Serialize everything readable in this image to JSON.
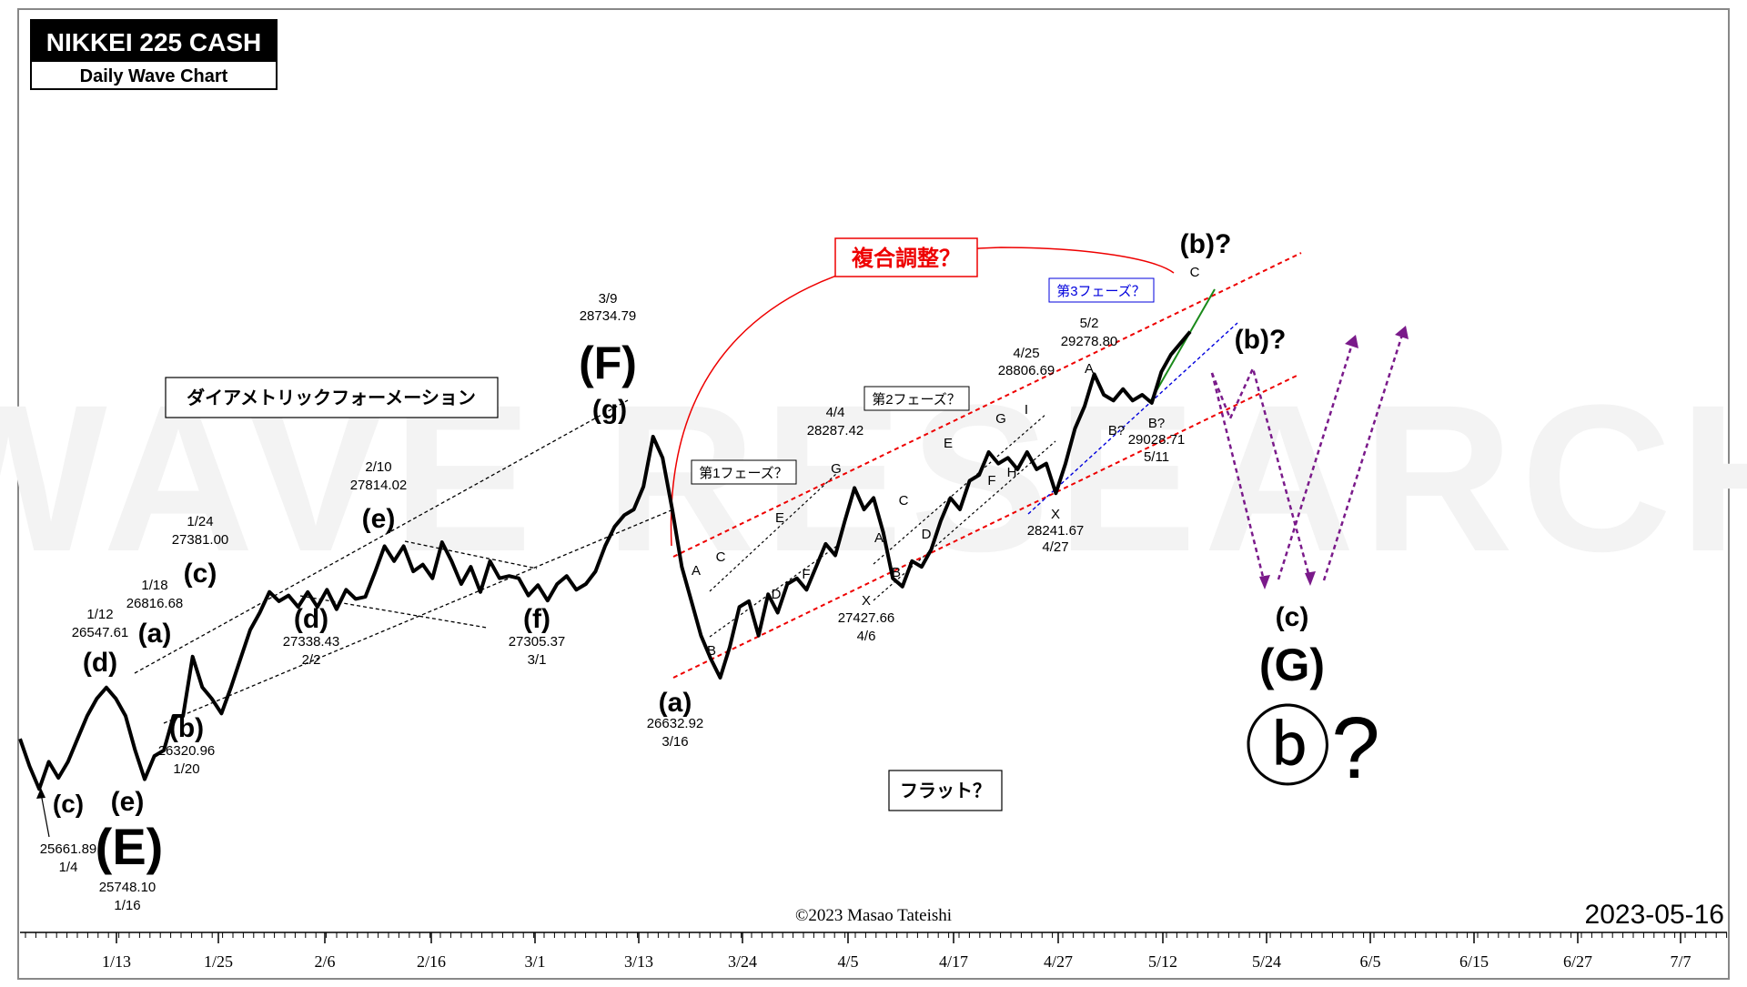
{
  "chart_data": {
    "type": "line",
    "title": "NIKKEI 225 CASH",
    "subtitle": "Daily Wave Chart",
    "watermark": "WAVE RESEARCH",
    "copyright": "©2023 Masao Tateishi",
    "date_stamp": "2023-05-16",
    "x_ticks": [
      "1/13",
      "1/25",
      "2/6",
      "2/16",
      "3/1",
      "3/13",
      "3/24",
      "4/5",
      "4/17",
      "4/27",
      "5/12",
      "5/24",
      "6/5",
      "6/15",
      "6/27",
      "7/7"
    ],
    "series": [
      {
        "values": [
          26100,
          25860,
          25661.89,
          25900,
          25760,
          25900,
          26100,
          26300,
          26450,
          26547.61,
          26450,
          26300,
          26000,
          25748.1,
          25950,
          26000,
          26300,
          26300,
          26816.68,
          26550,
          26450,
          26320.96,
          26550,
          26800,
          27050,
          27200,
          27381.0,
          27300,
          27350,
          27250,
          27380,
          27250,
          27400,
          27230,
          27400,
          27320,
          27338.43,
          27550,
          27780,
          27650,
          27780,
          27560,
          27620,
          27500,
          27814.02,
          27650,
          27450,
          27600,
          27380,
          27650,
          27500,
          27520,
          27500,
          27350,
          27440,
          27305.37,
          27450,
          27520,
          27400,
          27450,
          27560,
          27780,
          27950,
          28050,
          28100,
          28300,
          28734.79,
          28550,
          28100,
          27600,
          27300,
          27000,
          26800,
          26632.92,
          26900,
          27250,
          27300,
          27000,
          27360,
          27200,
          27450,
          27500,
          27400,
          27600,
          27800,
          27700,
          28000,
          28287.42,
          28100,
          28200,
          27900,
          27500,
          27427.66,
          27650,
          27600,
          27750,
          28000,
          28200,
          28100,
          28350,
          28400,
          28600,
          28500,
          28550,
          28450,
          28600,
          28450,
          28500,
          28241.67,
          28500,
          28806.69,
          29000,
          29278.8,
          29100,
          29050,
          29150,
          29050,
          29100,
          29028.71,
          29300,
          29450,
          29550,
          29650
        ]
      }
    ],
    "annotations": {
      "pivots": [
        {
          "label": "(c)",
          "value": "25661.89",
          "date": "1/4"
        },
        {
          "label": "(d)",
          "value": "26547.61",
          "date": "1/12"
        },
        {
          "label": "(e)",
          "value": "25748.10",
          "date": "1/16"
        },
        {
          "label": "(E)"
        },
        {
          "label": "(a)",
          "value": "26816.68",
          "date": "1/18"
        },
        {
          "label": "(b)",
          "value": "26320.96",
          "date": "1/20"
        },
        {
          "label": "(c)",
          "value": "27381.00",
          "date": "1/24"
        },
        {
          "label": "(d)",
          "value": "27338.43",
          "date": "2/2"
        },
        {
          "label": "(e)",
          "value": "27814.02",
          "date": "2/10"
        },
        {
          "label": "(f)",
          "value": "27305.37",
          "date": "3/1"
        },
        {
          "label": "(g)"
        },
        {
          "label": "(F)",
          "value": "28734.79",
          "date": "3/9"
        },
        {
          "label": "(a)",
          "value": "26632.92",
          "date": "3/16"
        },
        {
          "label": "X",
          "value": "27427.66",
          "date": "4/6"
        },
        {
          "label": "",
          "value": "28287.42",
          "date": "4/4"
        },
        {
          "label": "X",
          "value": "28241.67",
          "date": "4/27"
        },
        {
          "label": "",
          "value": "28806.69",
          "date": "4/25"
        },
        {
          "label": "",
          "value": "29278.80",
          "date": "5/2"
        },
        {
          "label": "B?",
          "value": "29028.71",
          "date": "5/11"
        }
      ],
      "small_labels": [
        "A",
        "B",
        "C",
        "D",
        "E",
        "F",
        "G",
        "A",
        "B",
        "C",
        "D",
        "E",
        "F",
        "G",
        "H",
        "I",
        "A",
        "B?",
        "C"
      ],
      "boxes": {
        "diametric": "ダイアメトリックフォーメーション",
        "complex": "複合調整？",
        "phase1": "第1フェーズ？",
        "phase2": "第2フェーズ？",
        "phase3": "第3フェーズ？",
        "flat": "フラット？"
      },
      "projections": {
        "b_upper": "(b)?",
        "b_lower": "(b)?",
        "c": "(c)",
        "G": "(G)",
        "circled_b": "ⓑ?"
      }
    }
  }
}
